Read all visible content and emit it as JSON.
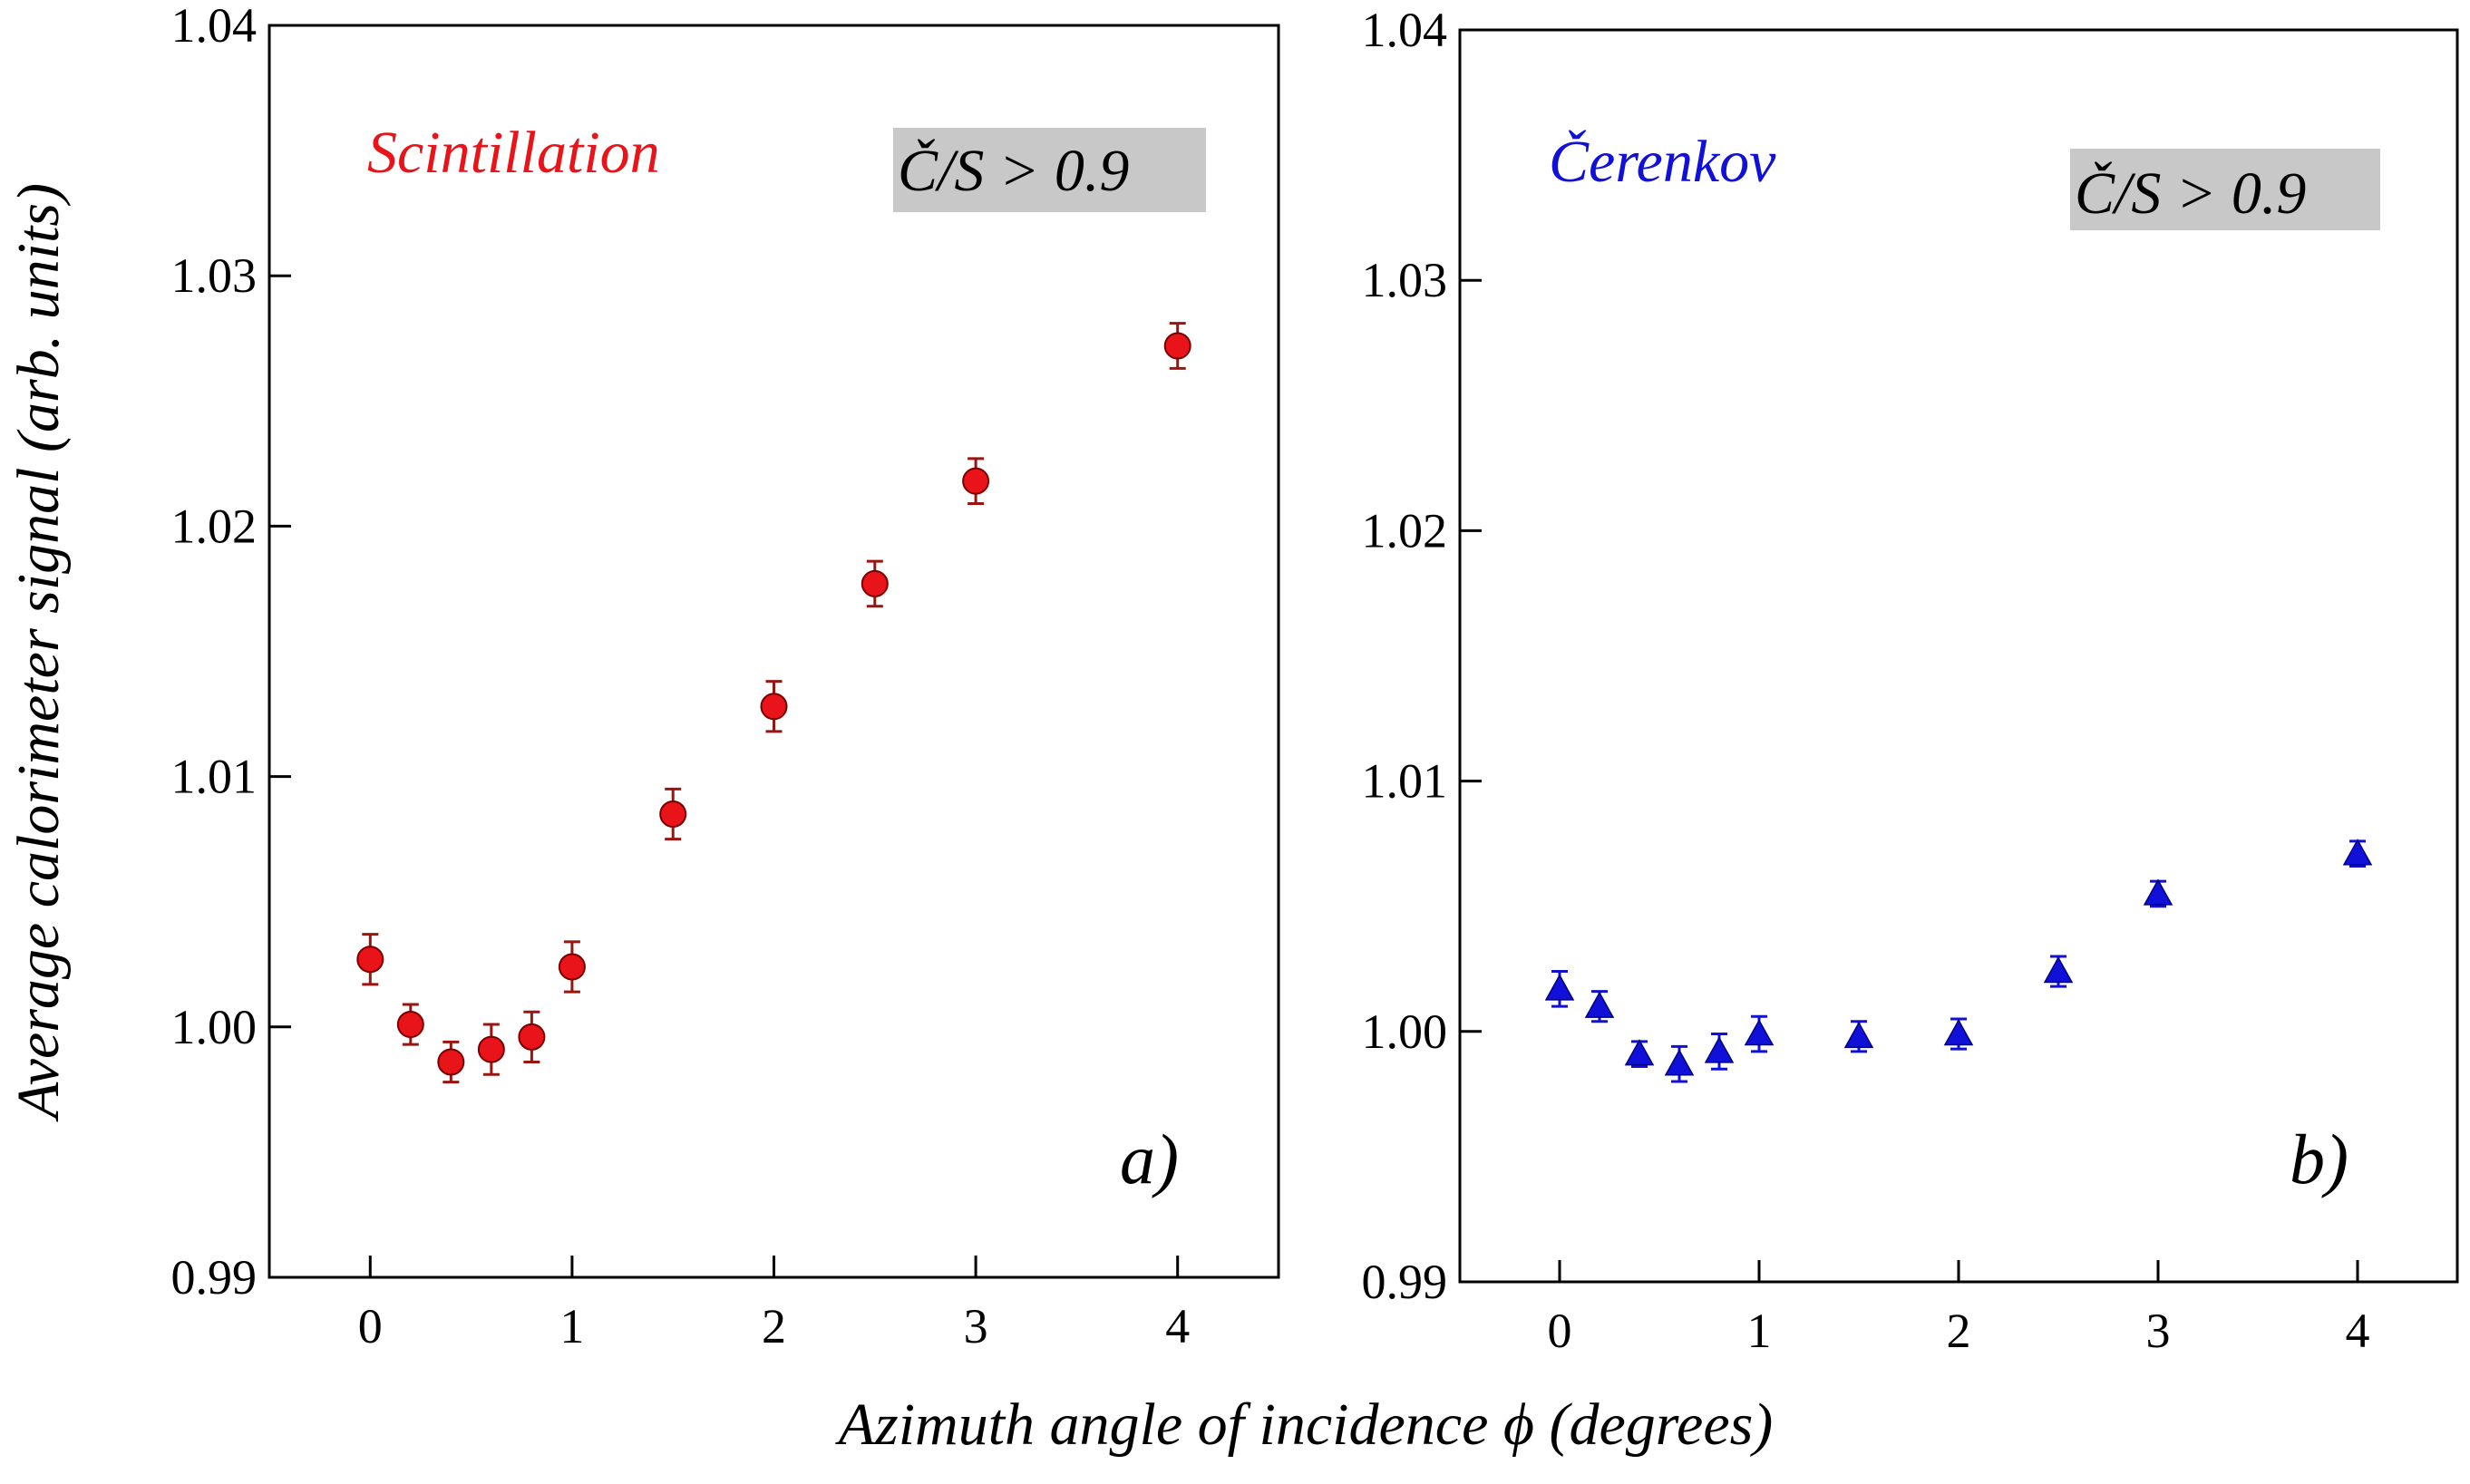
{
  "ylabel": "Average calorimeter signal (arb. units)",
  "xlabel": "Azimuth angle of incidence ϕ (degrees)",
  "chart_data": [
    {
      "type": "scatter",
      "series_label": "Scintillation",
      "series_color": "#e8141a",
      "error_color": "#9a1410",
      "marker": "circle",
      "cut_label": "Č/S > 0.9",
      "panel_tag": "a)",
      "xlim": [
        -0.5,
        4.5
      ],
      "ylim": [
        0.99,
        1.04
      ],
      "xticks": [
        0,
        1,
        2,
        3,
        4
      ],
      "yticks": [
        0.99,
        1.0,
        1.01,
        1.02,
        1.03,
        1.04
      ],
      "ytick_labels": [
        "0.99",
        "1.00",
        "1.01",
        "1.02",
        "1.03",
        "1.04"
      ],
      "points": [
        {
          "x": 0.0,
          "y": 1.0027,
          "err": 0.001
        },
        {
          "x": 0.2,
          "y": 1.0001,
          "err": 0.0008
        },
        {
          "x": 0.4,
          "y": 0.9986,
          "err": 0.0008
        },
        {
          "x": 0.6,
          "y": 0.9991,
          "err": 0.001
        },
        {
          "x": 0.8,
          "y": 0.9996,
          "err": 0.001
        },
        {
          "x": 1.0,
          "y": 1.0024,
          "err": 0.001
        },
        {
          "x": 1.5,
          "y": 1.0085,
          "err": 0.001
        },
        {
          "x": 2.0,
          "y": 1.0128,
          "err": 0.001
        },
        {
          "x": 2.5,
          "y": 1.0177,
          "err": 0.0009
        },
        {
          "x": 3.0,
          "y": 1.0218,
          "err": 0.0009
        },
        {
          "x": 4.0,
          "y": 1.0272,
          "err": 0.0009
        }
      ]
    },
    {
      "type": "scatter",
      "series_label": "Čerenkov",
      "series_color": "#1010d8",
      "error_color": "#1010d8",
      "marker": "triangle",
      "cut_label": "Č/S > 0.9",
      "panel_tag": "b)",
      "xlim": [
        -0.5,
        4.5
      ],
      "ylim": [
        0.99,
        1.04
      ],
      "xticks": [
        0,
        1,
        2,
        3,
        4
      ],
      "yticks": [
        0.99,
        1.0,
        1.01,
        1.02,
        1.03,
        1.04
      ],
      "ytick_labels": [
        "0.99",
        "1.00",
        "1.01",
        "1.02",
        "1.03",
        "1.04"
      ],
      "points": [
        {
          "x": 0.0,
          "y": 1.0017,
          "err": 0.0007
        },
        {
          "x": 0.2,
          "y": 1.001,
          "err": 0.0006
        },
        {
          "x": 0.4,
          "y": 0.9991,
          "err": 0.0005
        },
        {
          "x": 0.6,
          "y": 0.9987,
          "err": 0.0007
        },
        {
          "x": 0.8,
          "y": 0.9992,
          "err": 0.0007
        },
        {
          "x": 1.0,
          "y": 0.9999,
          "err": 0.0007
        },
        {
          "x": 1.5,
          "y": 0.9998,
          "err": 0.0006
        },
        {
          "x": 2.0,
          "y": 0.9999,
          "err": 0.0006
        },
        {
          "x": 2.5,
          "y": 1.0024,
          "err": 0.0006
        },
        {
          "x": 3.0,
          "y": 1.0055,
          "err": 0.0005
        },
        {
          "x": 4.0,
          "y": 1.0071,
          "err": 0.0005
        }
      ]
    }
  ]
}
